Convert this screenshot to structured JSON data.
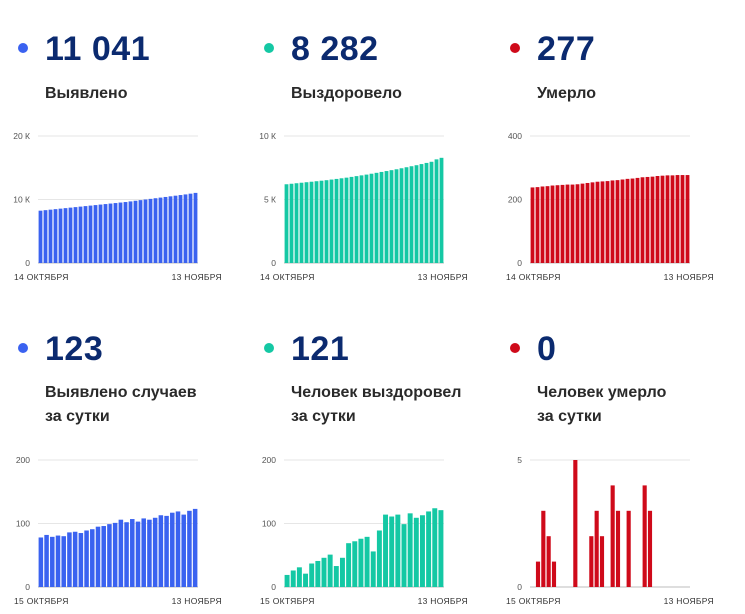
{
  "colors": {
    "blue": "#3a62f0",
    "teal": "#14c8a4",
    "red": "#cf0a1a",
    "number": "#0b2a6f"
  },
  "stats": [
    {
      "value": "11 041",
      "label": "Выявлено"
    },
    {
      "value": "8 282",
      "label": "Выздоровело"
    },
    {
      "value": "277",
      "label": "Умерло"
    },
    {
      "value": "123",
      "label_line1": "Выявлено случаев",
      "label_line2": "за сутки"
    },
    {
      "value": "121",
      "label_line1": "Человек выздоровел",
      "label_line2": "за сутки"
    },
    {
      "value": "0",
      "label_line1": "Человек умерло",
      "label_line2": "за сутки"
    }
  ],
  "chart_data": [
    {
      "type": "bar",
      "title": "",
      "color": "#3a62f0",
      "ylim": [
        0,
        20000
      ],
      "yticks": [
        0,
        10000,
        20000
      ],
      "ytick_labels": [
        "0",
        "10 К",
        "20 К"
      ],
      "xtick_labels": [
        "14 ОКТЯБРЯ",
        "13 НОЯБРЯ"
      ],
      "values": [
        8240,
        8320,
        8400,
        8480,
        8560,
        8640,
        8720,
        8800,
        8880,
        8960,
        9040,
        9120,
        9200,
        9280,
        9360,
        9440,
        9520,
        9600,
        9700,
        9800,
        9900,
        10000,
        10100,
        10200,
        10300,
        10400,
        10500,
        10600,
        10700,
        10800,
        10918,
        11041
      ]
    },
    {
      "type": "bar",
      "title": "",
      "color": "#14c8a4",
      "ylim": [
        0,
        10000
      ],
      "yticks": [
        0,
        5000,
        10000
      ],
      "ytick_labels": [
        "0",
        "5 К",
        "10 К"
      ],
      "xtick_labels": [
        "14 ОКТЯБРЯ",
        "13 НОЯБРЯ"
      ],
      "values": [
        6200,
        6240,
        6280,
        6320,
        6360,
        6400,
        6440,
        6480,
        6520,
        6570,
        6620,
        6670,
        6720,
        6780,
        6840,
        6900,
        6960,
        7030,
        7100,
        7170,
        7240,
        7310,
        7380,
        7460,
        7540,
        7620,
        7700,
        7790,
        7880,
        7970,
        8161,
        8282
      ]
    },
    {
      "type": "bar",
      "title": "",
      "color": "#cf0a1a",
      "ylim": [
        0,
        400
      ],
      "yticks": [
        0,
        200,
        400
      ],
      "ytick_labels": [
        "0",
        "200",
        "400"
      ],
      "xtick_labels": [
        "14 ОКТЯБРЯ",
        "13 НОЯБРЯ"
      ],
      "values": [
        238,
        239,
        241,
        242,
        244,
        245,
        246,
        247,
        247,
        248,
        250,
        252,
        254,
        256,
        257,
        258,
        260,
        261,
        263,
        265,
        266,
        268,
        270,
        271,
        272,
        274,
        275,
        276,
        276,
        277,
        277,
        277
      ]
    },
    {
      "type": "bar",
      "title": "",
      "color": "#3a62f0",
      "ylim": [
        0,
        200
      ],
      "yticks": [
        0,
        100,
        200
      ],
      "ytick_labels": [
        "0",
        "100",
        "200"
      ],
      "xtick_labels": [
        "15 ОКТЯБРЯ",
        "13 НОЯБРЯ"
      ],
      "values": [
        78,
        82,
        79,
        81,
        80,
        86,
        87,
        85,
        89,
        91,
        95,
        96,
        99,
        101,
        106,
        102,
        107,
        103,
        108,
        106,
        109,
        113,
        112,
        117,
        119,
        114,
        120,
        123
      ]
    },
    {
      "type": "bar",
      "title": "",
      "color": "#14c8a4",
      "ylim": [
        0,
        200
      ],
      "yticks": [
        0,
        100,
        200
      ],
      "ytick_labels": [
        "0",
        "100",
        "200"
      ],
      "xtick_labels": [
        "15 ОКТЯБРЯ",
        "13 НОЯБРЯ"
      ],
      "values": [
        19,
        26,
        31,
        21,
        37,
        41,
        46,
        51,
        33,
        46,
        69,
        72,
        76,
        79,
        56,
        89,
        114,
        111,
        114,
        99,
        116,
        109,
        113,
        119,
        124,
        121
      ]
    },
    {
      "type": "bar",
      "title": "",
      "color": "#cf0a1a",
      "ylim": [
        0,
        5
      ],
      "yticks": [
        0,
        5
      ],
      "ytick_labels": [
        "0",
        "5"
      ],
      "xtick_labels": [
        "15 ОКТЯБРЯ",
        "13 НОЯБРЯ"
      ],
      "values": [
        0,
        1,
        3,
        2,
        1,
        0,
        0,
        0,
        5,
        0,
        0,
        2,
        3,
        2,
        0,
        4,
        3,
        0,
        3,
        0,
        0,
        4,
        3,
        0,
        0,
        0,
        0,
        0,
        0,
        0
      ]
    }
  ]
}
